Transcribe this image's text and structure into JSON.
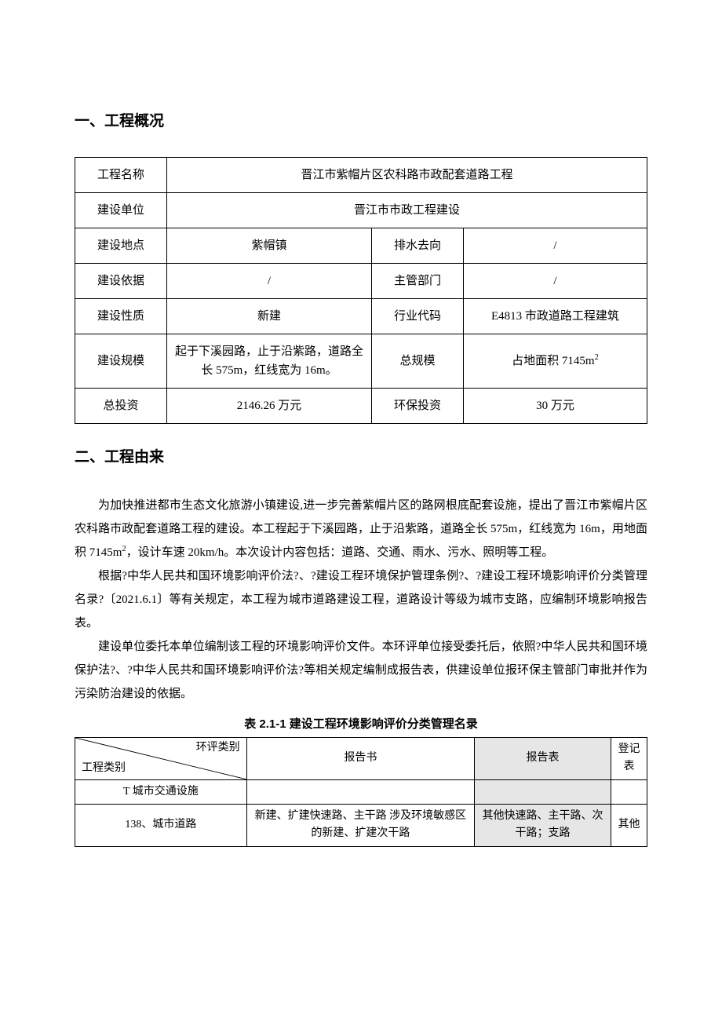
{
  "section1": {
    "heading": "一、工程概况",
    "rows": [
      {
        "label": "工程名称",
        "full": "晋江市紫帽片区农科路市政配套道路工程"
      },
      {
        "label": "建设单位",
        "full": "晋江市市政工程建设"
      },
      {
        "label": "建设地点",
        "val1": "紫帽镇",
        "label2": "排水去向",
        "val2": "/"
      },
      {
        "label": "建设依据",
        "val1": "/",
        "label2": "主管部门",
        "val2": "/"
      },
      {
        "label": "建设性质",
        "val1": "新建",
        "label2": "行业代码",
        "val2": "E4813 市政道路工程建筑"
      },
      {
        "label": "建设规模",
        "val1": "起于下溪园路，止于沿紫路，道路全长 575m，红线宽为 16m。",
        "label2": "总规模",
        "val2_html": "占地面积 7145m<span class=\"sup\">2</span>"
      },
      {
        "label": "总投资",
        "val1": "2146.26 万元",
        "label2": "环保投资",
        "val2": "30 万元"
      }
    ]
  },
  "section2": {
    "heading": "二、工程由来",
    "paragraphs": [
      "为加快推进都市生态文化旅游小镇建设,进一步完善紫帽片区的路网根底配套设施，提出了晋江市紫帽片区农科路市政配套道路工程的建设。本工程起于下溪园路，止于沿紫路，道路全长 575m，红线宽为 16m，用地面积 7145m<span class=\"sup\">2</span>，设计车速 20km/h。本次设计内容包括：道路、交通、雨水、污水、照明等工程。",
      "根据?中华人民共和国环境影响评价法?、?建设工程环境保护管理条例?、?建设工程环境影响评价分类管理名录?〔2021.6.1〕等有关规定，本工程为城市道路建设工程，道路设计等级为城市支路，应编制环境影响报告表。",
      "建设单位委托本单位编制该工程的环境影响评价文件。本环评单位接受委托后，依照?中华人民共和国环境保护法?、?中华人民共和国环境影响评价法?等相关规定编制成报告表，供建设单位报环保主管部门审批并作为污染防治建设的依据。"
    ],
    "table": {
      "caption": "表 2.1-1   建设工程环境影响评价分类管理名录",
      "diag_top": "环评类别",
      "diag_bottom": "工程类别",
      "headers": [
        "报告书",
        "报告表",
        "登记表"
      ],
      "shaded_header_index": 1,
      "rows": [
        {
          "label": "T 城市交通设施",
          "cells": [
            "",
            "",
            ""
          ],
          "shaded_index": 1
        },
        {
          "label": "138、城市道路",
          "cells": [
            "新建、扩建快速路、主干路 涉及环境敏感区的新建、扩建次干路",
            "其他快速路、主干路、次干路；支路",
            "其他"
          ],
          "shaded_index": 1
        }
      ]
    }
  },
  "style": {
    "background_color": "#ffffff",
    "text_color": "#000000",
    "shaded_cell_color": "#e6e6e6",
    "border_color": "#000000",
    "heading_fontsize": 19,
    "body_fontsize": 15,
    "table_fontsize": 14,
    "font_family_body": "SimSun",
    "font_family_heading": "SimHei"
  }
}
